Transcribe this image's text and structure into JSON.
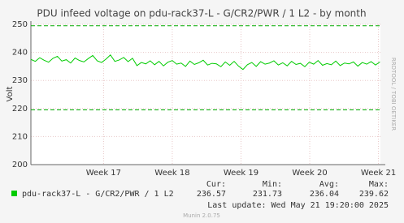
{
  "chart_data": {
    "type": "line",
    "title": "PDU infeed voltage on pdu-rack37-L - G/CR2/PWR / 1 L2 - by month",
    "y_label": "Volt",
    "side_text": "RRDTOOL / TOBI OETIKER",
    "footer": "Munin 2.0.75",
    "last_update": "Last update: Wed May 21 19:20:00 2025",
    "ylim": [
      200,
      250
    ],
    "yticks": [
      200,
      210,
      220,
      230,
      240,
      250
    ],
    "xlim": [
      0,
      35.6
    ],
    "xticks": [
      {
        "value": 7.4,
        "label": "Week 17"
      },
      {
        "value": 14.4,
        "label": "Week 18"
      },
      {
        "value": 21.4,
        "label": "Week 19"
      },
      {
        "value": 28.4,
        "label": "Week 20"
      },
      {
        "value": 35.4,
        "label": "Week 21"
      }
    ],
    "grid": true,
    "thresholds": [
      249.5,
      219.5
    ],
    "threshold_color": "#00aa00",
    "x": [
      0,
      0.45,
      0.9,
      1.35,
      1.8,
      2.25,
      2.7,
      3.15,
      3.6,
      4.05,
      4.5,
      4.95,
      5.4,
      5.85,
      6.3,
      6.75,
      7.2,
      7.65,
      8.1,
      8.55,
      9,
      9.45,
      9.9,
      10.35,
      10.8,
      11.25,
      11.7,
      12.15,
      12.6,
      13.05,
      13.5,
      13.95,
      14.4,
      14.85,
      15.3,
      15.75,
      16.2,
      16.65,
      17.1,
      17.55,
      18,
      18.45,
      18.9,
      19.35,
      19.8,
      20.25,
      20.7,
      21.15,
      21.6,
      22.05,
      22.5,
      22.95,
      23.4,
      23.85,
      24.3,
      24.75,
      25.2,
      25.65,
      26.1,
      26.55,
      27,
      27.45,
      27.9,
      28.35,
      28.8,
      29.25,
      29.7,
      30.15,
      30.6,
      31.05,
      31.5,
      31.95,
      32.4,
      32.85,
      33.3,
      33.75,
      34.2,
      34.65,
      35.1,
      35.55
    ],
    "series": [
      {
        "name": "pdu-rack37-L - G/CR2/PWR / 1 L2",
        "color": "#00cc00",
        "values": [
          237.5,
          236.8,
          238.1,
          237.2,
          236.5,
          237.9,
          238.6,
          236.9,
          237.4,
          236.2,
          238.0,
          237.1,
          236.6,
          237.8,
          238.9,
          237.0,
          236.4,
          237.6,
          239.1,
          236.8,
          237.3,
          238.2,
          236.7,
          237.9,
          235.3,
          236.4,
          235.9,
          237.0,
          235.6,
          236.8,
          235.2,
          236.5,
          237.1,
          235.8,
          236.2,
          235.0,
          236.9,
          235.7,
          236.3,
          237.2,
          235.5,
          236.1,
          235.9,
          234.9,
          236.6,
          235.4,
          236.8,
          235.1,
          233.9,
          235.6,
          236.4,
          235.0,
          236.7,
          235.8,
          236.2,
          237.0,
          235.5,
          236.3,
          235.2,
          236.8,
          235.7,
          236.1,
          234.9,
          236.5,
          235.8,
          237.1,
          235.4,
          236.0,
          235.6,
          236.9,
          235.3,
          236.2,
          235.9,
          236.6,
          235.1,
          236.4,
          235.8,
          236.7,
          235.5,
          236.6
        ]
      }
    ],
    "stats": {
      "headers": [
        "Cur:",
        "Min:",
        "Avg:",
        "Max:"
      ],
      "values": [
        236.57,
        231.73,
        236.04,
        239.62
      ]
    }
  }
}
